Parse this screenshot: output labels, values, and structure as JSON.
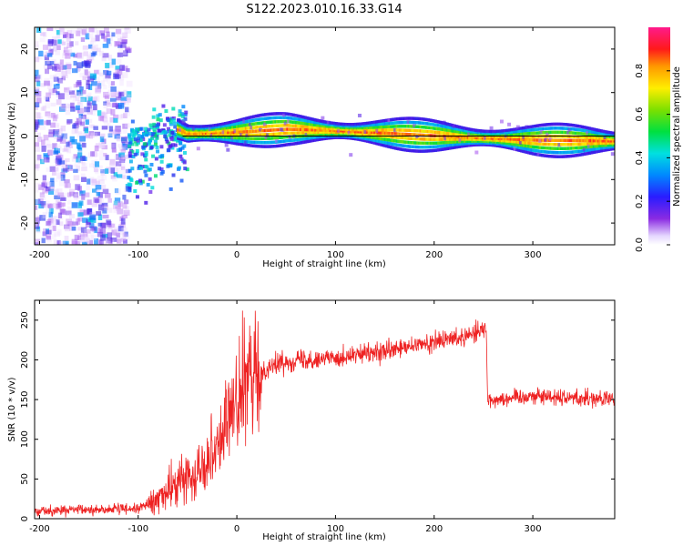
{
  "title": "S122.2023.010.16.33.G14",
  "chart_data": [
    {
      "type": "heatmap",
      "xlabel": "Height of straight line (km)",
      "ylabel": "Frequency (Hz)",
      "xlim": [
        -205,
        383
      ],
      "ylim": [
        -25,
        25
      ],
      "xticks": [
        -200,
        -100,
        0,
        100,
        200,
        300
      ],
      "yticks": [
        -20,
        -10,
        0,
        10,
        20
      ],
      "colorbar": {
        "label": "Normalized spectral amplitude",
        "range": [
          0,
          1
        ],
        "ticks": [
          "0.0",
          "0.2",
          "0.4",
          "0.6",
          "0.8"
        ],
        "colormap": "rainbow (violet-blue-cyan-green-yellow-orange-red-magenta)"
      },
      "ridge_frequency_profile": [
        {
          "x": -120,
          "y": 12
        },
        {
          "x": -95,
          "y": -1
        },
        {
          "x": -75,
          "y": 3
        },
        {
          "x": -50,
          "y": 0.5
        },
        {
          "x": 0,
          "y": 0.8
        },
        {
          "x": 50,
          "y": 1.5
        },
        {
          "x": 100,
          "y": 1.2
        },
        {
          "x": 150,
          "y": 0.6
        },
        {
          "x": 200,
          "y": 0.0
        },
        {
          "x": 250,
          "y": -0.5
        },
        {
          "x": 300,
          "y": -1.0
        },
        {
          "x": 380,
          "y": -1.2
        }
      ],
      "notes": "Diffuse low-amplitude speckle for x < -110 km; dominant Doppler ridge near 0 Hz from about -60 km upward; black reference line at 0 Hz"
    },
    {
      "type": "line",
      "xlabel": "Height of straight line (km)",
      "ylabel": "SNR (10 * v/v)",
      "xlim": [
        -205,
        383
      ],
      "ylim": [
        0,
        275
      ],
      "xticks": [
        -200,
        -100,
        0,
        100,
        200,
        300
      ],
      "yticks": [
        0,
        50,
        100,
        150,
        200,
        250
      ],
      "color": "#ee2222",
      "series": [
        {
          "x": [
            -205,
            -150,
            -100,
            -85,
            -60,
            -40,
            -20,
            0,
            10,
            20,
            30,
            40,
            60,
            100,
            150,
            200,
            230,
            253,
            254,
            260,
            300,
            350,
            383
          ],
          "y": [
            10,
            11,
            13,
            20,
            45,
            60,
            95,
            150,
            170,
            175,
            190,
            195,
            200,
            203,
            210,
            222,
            230,
            240,
            150,
            150,
            155,
            152,
            150
          ]
        }
      ]
    }
  ]
}
